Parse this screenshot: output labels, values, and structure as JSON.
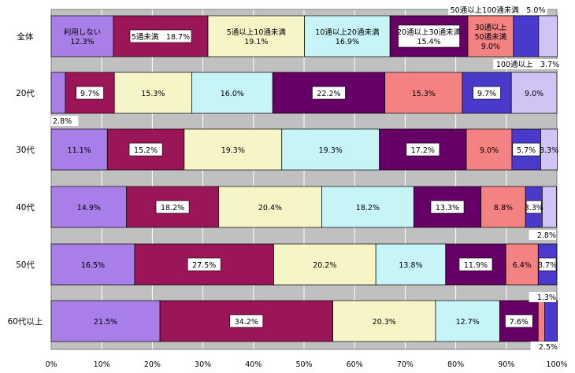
{
  "chart_data": {
    "type": "bar",
    "stacked": "percent",
    "orientation": "horizontal",
    "categories": [
      "全体",
      "20代",
      "30代",
      "40代",
      "50代",
      "60代以上"
    ],
    "series": [
      {
        "name": "利用しない",
        "color": "#a87fe8",
        "values": [
          12.3,
          2.8,
          11.1,
          14.9,
          16.5,
          21.5
        ]
      },
      {
        "name": "5通未満",
        "color": "#9a1657",
        "values": [
          18.7,
          9.7,
          15.2,
          18.2,
          27.5,
          34.2
        ]
      },
      {
        "name": "5通以上10通未満",
        "color": "#f5f5c8",
        "values": [
          19.1,
          15.3,
          19.3,
          20.4,
          20.2,
          20.3
        ]
      },
      {
        "name": "10通以上20通未満",
        "color": "#c7f5f7",
        "values": [
          16.9,
          16.0,
          19.3,
          18.2,
          13.8,
          12.7
        ]
      },
      {
        "name": "20通以上30通未満",
        "color": "#660066",
        "values": [
          15.4,
          22.2,
          17.2,
          13.3,
          11.9,
          7.6
        ]
      },
      {
        "name": "30通以上50通未満",
        "color": "#f58282",
        "values": [
          9.0,
          15.3,
          9.0,
          8.8,
          6.4,
          1.3
        ]
      },
      {
        "name": "50通以上100通未満",
        "color": "#4a3acc",
        "values": [
          5.0,
          9.7,
          5.7,
          3.3,
          3.7,
          2.5
        ]
      },
      {
        "name": "100通以上",
        "color": "#d2c3f5",
        "values": [
          3.7,
          9.0,
          3.3,
          2.8,
          0,
          0
        ]
      }
    ],
    "xlim": [
      0,
      100
    ],
    "x_ticks": [
      "0%",
      "10%",
      "20%",
      "30%",
      "40%",
      "50%",
      "60%",
      "70%",
      "80%",
      "90%",
      "100%"
    ],
    "grid": true,
    "segment_labels": [
      [
        "利用しない|12.3%",
        "5通未満　18.7%",
        "5通以上10通未満|19.1%",
        "10通以上20通未満|16.9%",
        "20通以上30通未満|15.4%",
        "30通以上|50通未満|9.0%",
        "",
        ""
      ],
      [
        "",
        "9.7%",
        "15.3%",
        "16.0%",
        "22.2%",
        "15.3%",
        "9.7%",
        "9.0%"
      ],
      [
        "11.1%",
        "15.2%",
        "19.3%",
        "19.3%",
        "17.2%",
        "9.0%",
        "5.7%",
        "3.3%"
      ],
      [
        "14.9%",
        "18.2%",
        "20.4%",
        "18.2%",
        "13.3%",
        "8.8%",
        "3.3%",
        ""
      ],
      [
        "16.5%",
        "27.5%",
        "20.2%",
        "13.8%",
        "11.9%",
        "6.4%",
        "3.7%",
        ""
      ],
      [
        "21.5%",
        "34.2%",
        "20.3%",
        "12.7%",
        "7.6%",
        "",
        "",
        ""
      ]
    ],
    "callouts": [
      "50通以上100通未満　5.0%",
      "100通以上　3.7%",
      "2.8%",
      "2.8%",
      "1.3%",
      "2.5%"
    ]
  }
}
